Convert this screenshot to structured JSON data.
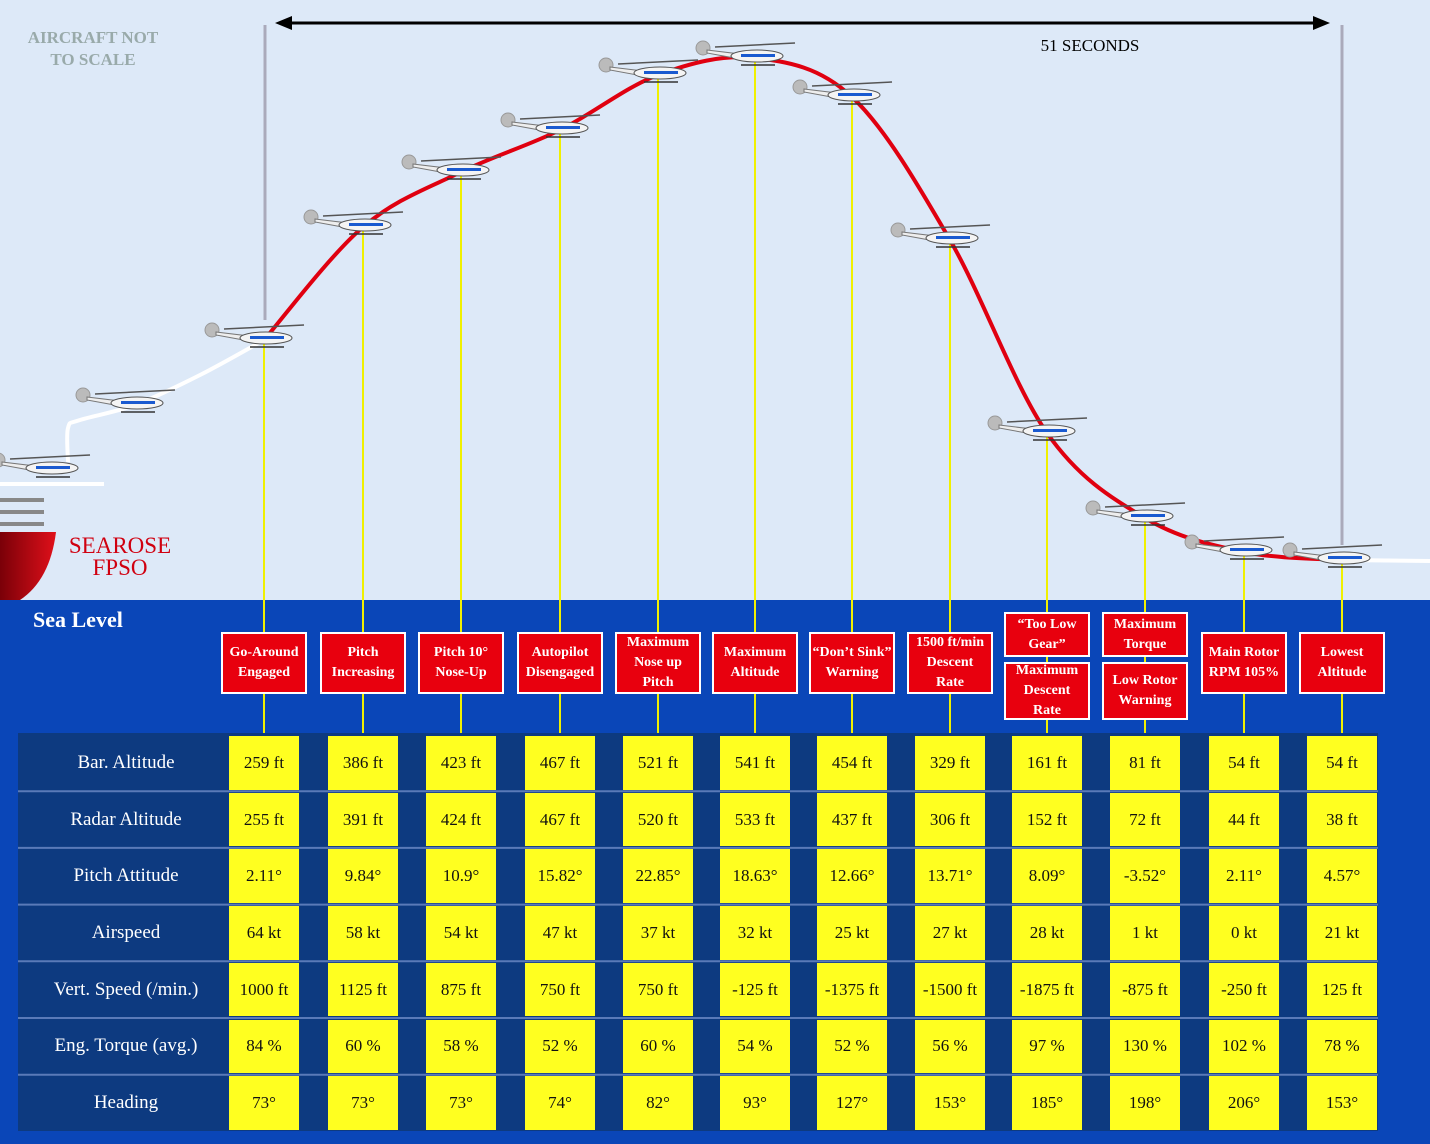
{
  "note": [
    "AIRCRAFT NOT",
    "TO SCALE"
  ],
  "duration": "51 SECONDS",
  "vessel": [
    "SEAROSE",
    "FPSO"
  ],
  "sea_level": "Sea Level",
  "events": [
    {
      "boxes": [
        [
          "Go-Around",
          "Engaged"
        ]
      ]
    },
    {
      "boxes": [
        [
          "Pitch",
          "Increasing"
        ]
      ]
    },
    {
      "boxes": [
        [
          "Pitch 10°",
          "Nose-Up"
        ]
      ]
    },
    {
      "boxes": [
        [
          "Autopilot",
          "Disengaged"
        ]
      ]
    },
    {
      "boxes": [
        [
          "Maximum",
          "Nose up",
          "Pitch"
        ]
      ]
    },
    {
      "boxes": [
        [
          "Maximum",
          "Altitude"
        ]
      ]
    },
    {
      "boxes": [
        [
          "“Don’t Sink”",
          "Warning"
        ]
      ]
    },
    {
      "boxes": [
        [
          "1500 ft/min",
          "Descent",
          "Rate"
        ]
      ]
    },
    {
      "boxes": [
        [
          "“Too Low",
          "Gear”"
        ],
        [
          "Maximum",
          "Descent",
          "Rate"
        ]
      ]
    },
    {
      "boxes": [
        [
          "Maximum",
          "Torque"
        ],
        [
          "Low Rotor",
          "Warning"
        ]
      ]
    },
    {
      "boxes": [
        [
          "Main Rotor",
          "RPM 105%"
        ]
      ]
    },
    {
      "boxes": [
        [
          "Lowest",
          "Altitude"
        ]
      ]
    }
  ],
  "table": {
    "row_labels": [
      "Bar. Altitude",
      "Radar Altitude",
      "Pitch Attitude",
      "Airspeed",
      "Vert. Speed (/min.)",
      "Eng. Torque (avg.)",
      "Heading"
    ],
    "rows": [
      [
        "259 ft",
        "386 ft",
        "423 ft",
        "467 ft",
        "521 ft",
        "541 ft",
        "454 ft",
        "329 ft",
        "161 ft",
        "81 ft",
        "54 ft",
        "54 ft"
      ],
      [
        "255 ft",
        "391 ft",
        "424 ft",
        "467 ft",
        "520 ft",
        "533 ft",
        "437 ft",
        "306 ft",
        "152 ft",
        "72 ft",
        "44 ft",
        "38 ft"
      ],
      [
        "2.11°",
        "9.84°",
        "10.9°",
        "15.82°",
        "22.85°",
        "18.63°",
        "12.66°",
        "13.71°",
        "8.09°",
        "-3.52°",
        "2.11°",
        "4.57°"
      ],
      [
        "64 kt",
        "58 kt",
        "54 kt",
        "47 kt",
        "37 kt",
        "32 kt",
        "25 kt",
        "27 kt",
        "28 kt",
        "1 kt",
        "0 kt",
        "21 kt"
      ],
      [
        "1000 ft",
        "1125 ft",
        "875 ft",
        "750 ft",
        "750 ft",
        "-125 ft",
        "-1375 ft",
        "-1500 ft",
        "-1875 ft",
        "-875 ft",
        "-250 ft",
        "125 ft"
      ],
      [
        "84 %",
        "60 %",
        "58 %",
        "52 %",
        "60 %",
        "54 %",
        "52 %",
        "56 %",
        "97 %",
        "130 %",
        "102 %",
        "78 %"
      ],
      [
        "73°",
        "73°",
        "73°",
        "74°",
        "82°",
        "93°",
        "127°",
        "153°",
        "185°",
        "198°",
        "206°",
        "153°"
      ]
    ]
  }
}
